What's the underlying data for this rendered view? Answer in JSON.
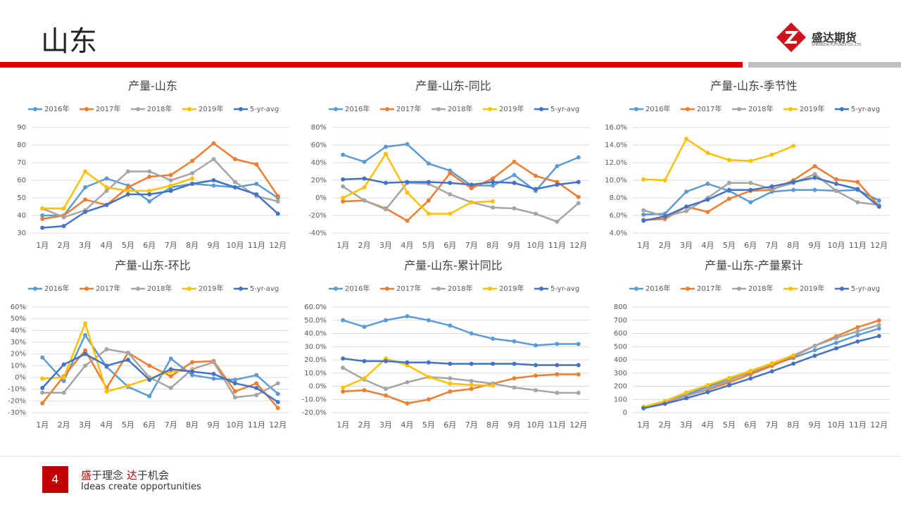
{
  "header": {
    "title": "山东",
    "logo_name": "盛达期货",
    "logo_sub": "SHENGDA FUTURES CO.,LTD"
  },
  "footer": {
    "page": "4",
    "slogan": [
      "盛",
      "于理念",
      "达",
      "于机会"
    ],
    "motto": "Ideas create opportunities"
  },
  "chart_data": [
    {
      "type": "line",
      "title": "产量-山东",
      "categories": [
        "1月",
        "2月",
        "3月",
        "4月",
        "5月",
        "6月",
        "7月",
        "8月",
        "9月",
        "10月",
        "11月",
        "12月"
      ],
      "ylim": [
        30,
        90
      ],
      "yticks": [
        30,
        40,
        50,
        60,
        70,
        80,
        90
      ],
      "grid": true,
      "series": [
        {
          "name": "2016年",
          "color": "#5b9bd5",
          "values": [
            40,
            40,
            56,
            61,
            57,
            48,
            56,
            58,
            57,
            56,
            58,
            50
          ]
        },
        {
          "name": "2017年",
          "color": "#ed7d31",
          "values": [
            38,
            40,
            49,
            46,
            56,
            62,
            63,
            71,
            81,
            72,
            69,
            51
          ]
        },
        {
          "name": "2018年",
          "color": "#a5a5a5",
          "values": [
            44,
            39,
            43,
            54,
            65,
            65,
            60,
            64,
            72,
            59,
            51,
            48
          ]
        },
        {
          "name": "2019年",
          "color": "#ffc000",
          "values": [
            44,
            44,
            65,
            56,
            54,
            54,
            57,
            61,
            null,
            null,
            null,
            null
          ]
        },
        {
          "name": "5-yr-avg",
          "color": "#4472c4",
          "values": [
            33,
            34,
            42,
            46,
            52,
            52,
            54,
            58,
            60,
            56,
            52,
            41
          ]
        }
      ]
    },
    {
      "type": "line",
      "title": "产量-山东-同比",
      "categories": [
        "1月",
        "2月",
        "3月",
        "4月",
        "5月",
        "6月",
        "7月",
        "8月",
        "9月",
        "10月",
        "11月",
        "12月"
      ],
      "ylim": [
        -40,
        80
      ],
      "yticks": [
        {
          "value": -40,
          "label": "-40%"
        },
        {
          "value": -20,
          "label": "-20%"
        },
        {
          "value": 0,
          "label": "0%"
        },
        {
          "value": 20,
          "label": "20%"
        },
        {
          "value": 40,
          "label": "40%"
        },
        {
          "value": 60,
          "label": "60%"
        },
        {
          "value": 80,
          "label": "80%"
        }
      ],
      "grid": true,
      "series": [
        {
          "name": "2016年",
          "color": "#5b9bd5",
          "values": [
            49,
            41,
            58,
            61,
            39,
            31,
            14,
            14,
            26,
            8,
            36,
            46
          ]
        },
        {
          "name": "2017年",
          "color": "#ed7d31",
          "values": [
            -4,
            -3,
            -12,
            -26,
            -3,
            28,
            11,
            22,
            41,
            25,
            18,
            1
          ]
        },
        {
          "name": "2018年",
          "color": "#a5a5a5",
          "values": [
            13,
            -3,
            -13,
            17,
            16,
            4,
            -5,
            -11,
            -12,
            -18,
            -27,
            -6
          ]
        },
        {
          "name": "2019年",
          "color": "#ffc000",
          "values": [
            0,
            12,
            50,
            6,
            -18,
            -18,
            -5,
            -4,
            null,
            null,
            null,
            null
          ]
        },
        {
          "name": "5-yr-avg",
          "color": "#4472c4",
          "values": [
            21,
            22,
            17,
            18,
            18,
            17,
            15,
            18,
            17,
            10,
            15,
            18
          ]
        }
      ]
    },
    {
      "type": "line",
      "title": "产量-山东-季节性",
      "categories": [
        "1月",
        "2月",
        "3月",
        "4月",
        "5月",
        "6月",
        "7月",
        "8月",
        "9月",
        "10月",
        "11月",
        "12月"
      ],
      "ylim": [
        4,
        16
      ],
      "yticks": [
        {
          "value": 4,
          "label": "4.0%"
        },
        {
          "value": 6,
          "label": "6.0%"
        },
        {
          "value": 8,
          "label": "8.0%"
        },
        {
          "value": 10,
          "label": "10.0%"
        },
        {
          "value": 12,
          "label": "12.0%"
        },
        {
          "value": 14,
          "label": "14.0%"
        },
        {
          "value": 16,
          "label": "16.0%"
        }
      ],
      "grid": true,
      "series": [
        {
          "name": "2016年",
          "color": "#5b9bd5",
          "values": [
            6.1,
            6.2,
            8.7,
            9.6,
            8.8,
            7.5,
            8.7,
            8.9,
            8.9,
            8.8,
            8.9,
            7.7
          ]
        },
        {
          "name": "2017年",
          "color": "#ed7d31",
          "values": [
            5.5,
            5.6,
            7.0,
            6.4,
            7.9,
            8.8,
            8.9,
            10.0,
            11.6,
            10.1,
            9.8,
            7.1
          ]
        },
        {
          "name": "2018年",
          "color": "#a5a5a5",
          "values": [
            6.6,
            5.9,
            6.5,
            8.0,
            9.7,
            9.7,
            9.0,
            9.7,
            10.7,
            8.8,
            7.5,
            7.2
          ]
        },
        {
          "name": "2019年",
          "color": "#ffc000",
          "values": [
            10.1,
            10.0,
            14.7,
            13.1,
            12.3,
            12.2,
            12.9,
            13.9,
            null,
            null,
            null,
            null
          ]
        },
        {
          "name": "5-yr-avg",
          "color": "#4472c4",
          "values": [
            5.4,
            5.9,
            7.0,
            7.8,
            8.9,
            8.9,
            9.3,
            9.8,
            10.3,
            9.6,
            9.0,
            7.0
          ]
        }
      ]
    },
    {
      "type": "line",
      "title": "产量-山东-环比",
      "categories": [
        "1月",
        "2月",
        "3月",
        "4月",
        "5月",
        "6月",
        "7月",
        "8月",
        "9月",
        "10月",
        "11月",
        "12月"
      ],
      "ylim": [
        -30,
        60
      ],
      "yticks": [
        {
          "value": -30,
          "label": "-30%"
        },
        {
          "value": -20,
          "label": "-20%"
        },
        {
          "value": -10,
          "label": "-10%"
        },
        {
          "value": 0,
          "label": "0%"
        },
        {
          "value": 10,
          "label": "10%"
        },
        {
          "value": 20,
          "label": "20%"
        },
        {
          "value": 30,
          "label": "30%"
        },
        {
          "value": 40,
          "label": "40%"
        },
        {
          "value": 50,
          "label": "50%"
        },
        {
          "value": 60,
          "label": "60%"
        }
      ],
      "grid": true,
      "series": [
        {
          "name": "2016年",
          "color": "#5b9bd5",
          "values": [
            17,
            -3,
            36,
            9,
            -8,
            -16,
            16,
            2,
            -1,
            -2,
            2,
            -14
          ]
        },
        {
          "name": "2017年",
          "color": "#ed7d31",
          "values": [
            -22,
            1,
            23,
            -9,
            21,
            10,
            1,
            13,
            14,
            -12,
            -5,
            -26
          ]
        },
        {
          "name": "2018年",
          "color": "#a5a5a5",
          "values": [
            -13,
            -13,
            10,
            24,
            21,
            0,
            -9,
            7,
            13,
            -17,
            -15,
            -5
          ]
        },
        {
          "name": "2019年",
          "color": "#ffc000",
          "values": [
            -1,
            0,
            46,
            -12,
            -7,
            -1,
            5,
            6,
            null,
            null,
            null,
            null
          ]
        },
        {
          "name": "5-yr-avg",
          "color": "#4472c4",
          "values": [
            -9,
            11,
            20,
            10,
            15,
            -2,
            7,
            5,
            3,
            -5,
            -9,
            -21
          ]
        }
      ]
    },
    {
      "type": "line",
      "title": "产量-山东-累计同比",
      "categories": [
        "1月",
        "2月",
        "3月",
        "4月",
        "5月",
        "6月",
        "7月",
        "8月",
        "9月",
        "10月",
        "11月",
        "12月"
      ],
      "ylim": [
        -20,
        60
      ],
      "yticks": [
        {
          "value": -20,
          "label": "-20.0%"
        },
        {
          "value": -10,
          "label": "-10.0%"
        },
        {
          "value": 0,
          "label": "0.0%"
        },
        {
          "value": 10,
          "label": "10.0%"
        },
        {
          "value": 20,
          "label": "20.0%"
        },
        {
          "value": 30,
          "label": "30.0%"
        },
        {
          "value": 40,
          "label": "40.0%"
        },
        {
          "value": 50,
          "label": "50.0%"
        },
        {
          "value": 60,
          "label": "60.0%"
        }
      ],
      "grid": true,
      "series": [
        {
          "name": "2016年",
          "color": "#5b9bd5",
          "values": [
            50,
            45,
            50,
            53,
            50,
            46,
            40,
            36,
            34,
            31,
            32,
            32
          ]
        },
        {
          "name": "2017年",
          "color": "#ed7d31",
          "values": [
            -4,
            -3,
            -7,
            -13,
            -10,
            -4,
            -2,
            2,
            6,
            8,
            9,
            9
          ]
        },
        {
          "name": "2018年",
          "color": "#a5a5a5",
          "values": [
            14,
            5,
            -2,
            3,
            7,
            6,
            4,
            2,
            -1,
            -3,
            -5,
            -5
          ]
        },
        {
          "name": "2019年",
          "color": "#ffc000",
          "values": [
            -1,
            6,
            21,
            16,
            7,
            2,
            1,
            0.5,
            null,
            null,
            null,
            null
          ]
        },
        {
          "name": "5-yr-avg",
          "color": "#4472c4",
          "values": [
            21,
            19,
            19,
            18,
            18,
            17,
            17,
            17,
            17,
            16,
            16,
            16
          ]
        }
      ]
    },
    {
      "type": "line",
      "title": "产量-山东-产量累计",
      "categories": [
        "1月",
        "2月",
        "3月",
        "4月",
        "5月",
        "6月",
        "7月",
        "8月",
        "9月",
        "10月",
        "11月",
        "12月"
      ],
      "ylim": [
        0,
        800
      ],
      "yticks": [
        0,
        100,
        200,
        300,
        400,
        500,
        600,
        700,
        800
      ],
      "grid": true,
      "series": [
        {
          "name": "2016年",
          "color": "#5b9bd5",
          "values": [
            40,
            80,
            136,
            197,
            254,
            302,
            358,
            416,
            473,
            529,
            587,
            637
          ]
        },
        {
          "name": "2017年",
          "color": "#ed7d31",
          "values": [
            38,
            78,
            127,
            173,
            229,
            291,
            354,
            425,
            506,
            578,
            647,
            698
          ]
        },
        {
          "name": "2018年",
          "color": "#a5a5a5",
          "values": [
            44,
            83,
            126,
            180,
            245,
            310,
            370,
            434,
            506,
            565,
            616,
            664
          ]
        },
        {
          "name": "2019年",
          "color": "#ffc000",
          "values": [
            44,
            88,
            153,
            209,
            263,
            317,
            374,
            435,
            null,
            null,
            null,
            null
          ]
        },
        {
          "name": "5-yr-avg",
          "color": "#4472c4",
          "values": [
            33,
            67,
            109,
            155,
            207,
            259,
            313,
            371,
            431,
            487,
            539,
            580
          ]
        }
      ]
    }
  ]
}
